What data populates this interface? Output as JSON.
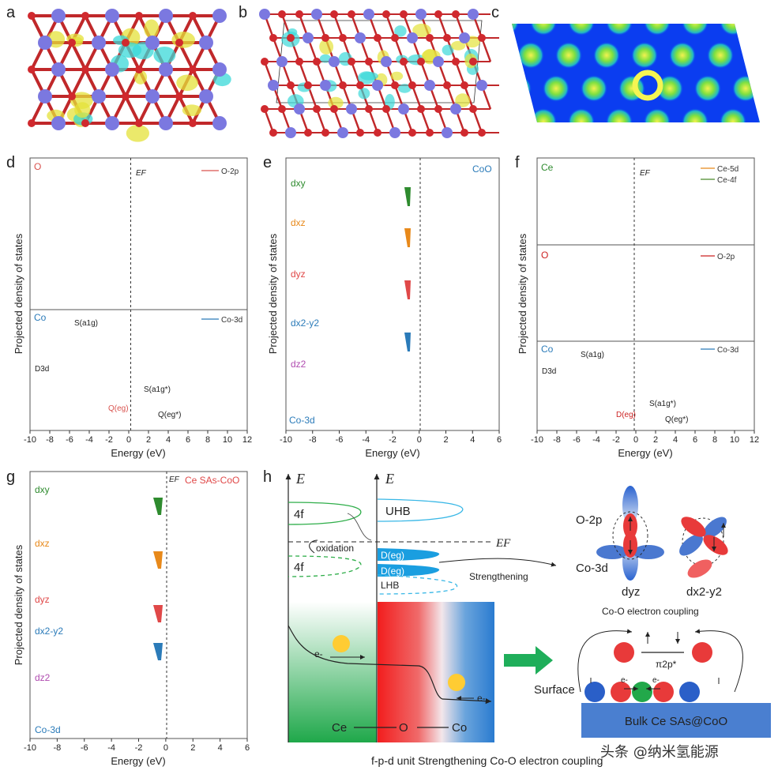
{
  "panel_labels": [
    "a",
    "b",
    "c",
    "d",
    "e",
    "f",
    "g",
    "h"
  ],
  "colors": {
    "o2p": "#d9534f",
    "co3d": "#2b7bb9",
    "dxy": "#2e8b2e",
    "dxz": "#e8891a",
    "dyz": "#e04848",
    "dx2y2": "#2b7bb9",
    "dz2": "#b04cb0",
    "ce5d": "#e8891a",
    "ce4f": "#4a8a2a",
    "crystal_bg": "#0b3df0"
  },
  "axes": {
    "energy_label": "Energy (eV)",
    "pdos_label": "Projected density of states",
    "xticks_d": [
      "-10",
      "-8",
      "-6",
      "-4",
      "-2",
      "0",
      "2",
      "4",
      "6",
      "8",
      "10",
      "12"
    ],
    "xticks_e": [
      "-10",
      "-8",
      "-6",
      "-4",
      "-2",
      "0",
      "2",
      "4",
      "6"
    ],
    "xticks_f": [
      "-10",
      "-8",
      "-6",
      "-4",
      "-2",
      "0",
      "2",
      "4",
      "6",
      "8",
      "10",
      "12"
    ],
    "xticks_g": [
      "-10",
      "-8",
      "-6",
      "-4",
      "-2",
      "0",
      "2",
      "4",
      "6"
    ],
    "ef": "EF"
  },
  "panel_d": {
    "o_title": "O",
    "o_legend": "O-2p",
    "co_title": "Co",
    "co_legend": "Co-3d",
    "d3d": "D3d",
    "s_a1g": "S(a1g)",
    "s_a1g_star": "S(a1g*)",
    "q_eg": "Q(eg)",
    "q_eg_star": "Q(eg*)"
  },
  "panel_e": {
    "title": "CoO",
    "rows": [
      "dxy",
      "dxz",
      "dyz",
      "dx2-y2",
      "dz2"
    ],
    "footer": "Co-3d"
  },
  "panel_f": {
    "ce_title": "Ce",
    "ce5d": "Ce-5d",
    "ce4f": "Ce-4f",
    "o_title": "O",
    "o_legend": "O-2p",
    "co_title": "Co",
    "co_legend": "Co-3d",
    "d3d": "D3d",
    "s_a1g": "S(a1g)",
    "d_eg": "D(eg)",
    "s_a1g_star": "S(a1g*)",
    "q_eg_star": "Q(eg*)"
  },
  "panel_g": {
    "title": "Ce SAs-CoO",
    "rows": [
      "dxy",
      "dxz",
      "dyz",
      "dx2-y2",
      "dz2"
    ],
    "footer": "Co-3d"
  },
  "panel_h": {
    "e_label": "E",
    "f4_top": "4f",
    "f4_bot": "4f",
    "oxidation": "oxidation",
    "uhb": "UHB",
    "ef": "EF",
    "d_eg1": "D(eg)",
    "d_eg2": "D(eg)",
    "lhb": "LHB",
    "strengthening": "Strengthening",
    "eminus": "e-",
    "ce": "Ce",
    "o": "O",
    "co": "Co",
    "o2p": "O-2p",
    "co3d": "Co-3d",
    "dyz": "dyz",
    "dx2y2": "dx2-y2",
    "coupling": "Co-O electron coupling",
    "pi2p": "π2p*",
    "surface": "Surface",
    "bulk": "Bulk Ce SAs@CoO",
    "caption": "f-p-d unit Strengthening Co-O electron coupling"
  },
  "watermark": "头条 @纳米氢能源"
}
